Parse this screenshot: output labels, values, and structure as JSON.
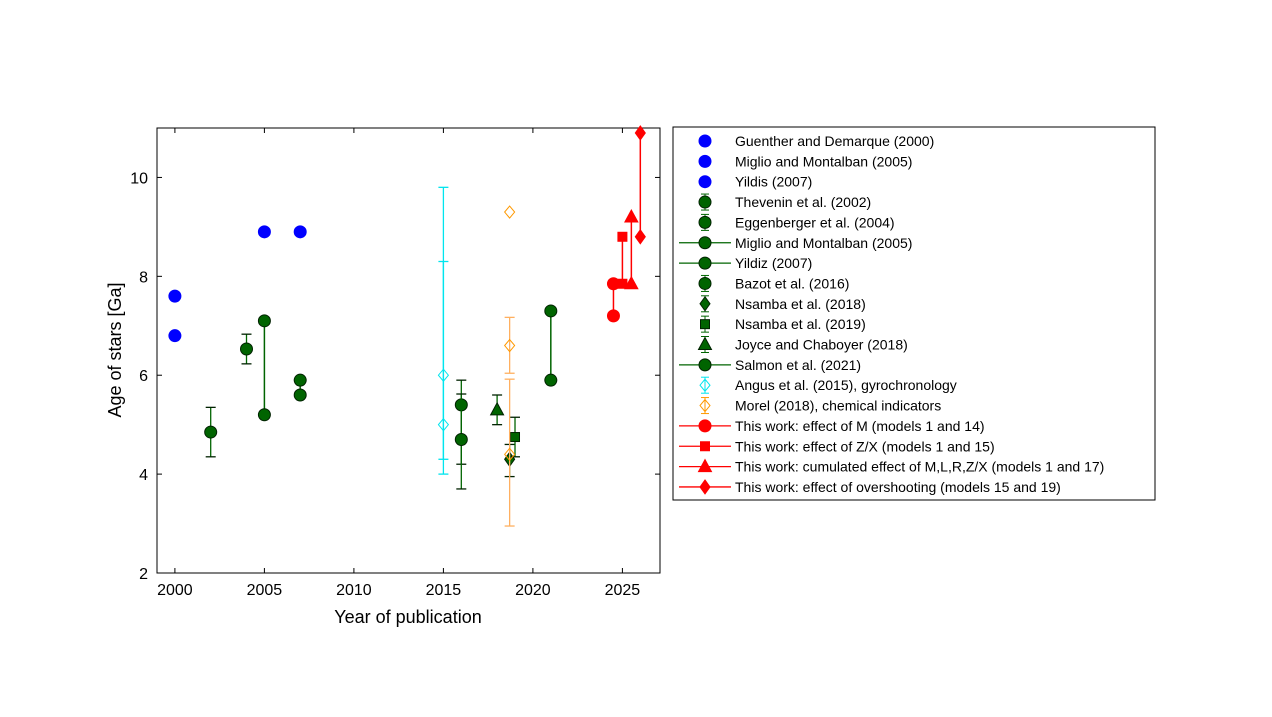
{
  "chart_data": {
    "type": "scatter",
    "xlabel": "Year of publication",
    "ylabel": "Age of stars [Ga]",
    "xlim": [
      1999,
      2027.1
    ],
    "ylim": [
      2,
      11
    ],
    "xticks": [
      2000,
      2005,
      2010,
      2015,
      2020,
      2025
    ],
    "yticks": [
      2,
      4,
      6,
      8,
      10
    ],
    "grid": false,
    "legend_position": "outside-right",
    "series": [
      {
        "name": "Guenther and Demarque (2000)",
        "color": "#0000ff",
        "marker": "circle",
        "points": [
          {
            "x": 2000,
            "y": 7.6
          },
          {
            "x": 2000,
            "y": 6.8
          }
        ]
      },
      {
        "name": "Miglio and Montalban (2005)",
        "color": "#0000ff",
        "marker": "circle",
        "points": [
          {
            "x": 2005,
            "y": 8.9
          }
        ]
      },
      {
        "name": "Yildis (2007)",
        "color": "#0000ff",
        "marker": "circle",
        "points": [
          {
            "x": 2007,
            "y": 8.9
          }
        ]
      },
      {
        "name": "Thevenin et al. (2002)",
        "color": "#006400",
        "marker": "circle",
        "errorbar": true,
        "points": [
          {
            "x": 2002,
            "y": 4.85,
            "lo": 4.35,
            "hi": 5.35
          }
        ]
      },
      {
        "name": "Eggenberger et al. (2004)",
        "color": "#006400",
        "marker": "circle",
        "errorbar": true,
        "points": [
          {
            "x": 2004,
            "y": 6.53,
            "lo": 6.23,
            "hi": 6.83
          }
        ]
      },
      {
        "name": "Miglio and Montalban (2005)",
        "color": "#006400",
        "marker": "circle",
        "line": true,
        "points": [
          {
            "x": 2005,
            "y": 7.1
          },
          {
            "x": 2005,
            "y": 5.2
          }
        ]
      },
      {
        "name": "Yildiz (2007)",
        "color": "#006400",
        "marker": "circle",
        "line": true,
        "points": [
          {
            "x": 2007,
            "y": 5.9
          },
          {
            "x": 2007,
            "y": 5.6
          }
        ]
      },
      {
        "name": "Bazot et al. (2016)",
        "color": "#006400",
        "marker": "circle",
        "errorbar": true,
        "points": [
          {
            "x": 2016,
            "y": 5.4,
            "lo": 4.2,
            "hi": 5.9
          },
          {
            "x": 2016,
            "y": 4.7,
            "lo": 3.7,
            "hi": 5.62
          }
        ]
      },
      {
        "name": "Nsamba et al. (2018)",
        "color": "#006400",
        "marker": "diamond",
        "errorbar": true,
        "points": [
          {
            "x": 2018.7,
            "y": 4.3,
            "lo": 3.95,
            "hi": 4.6
          }
        ]
      },
      {
        "name": "Nsamba et al. (2019)",
        "color": "#006400",
        "marker": "square",
        "errorbar": true,
        "points": [
          {
            "x": 2019,
            "y": 4.75,
            "lo": 4.35,
            "hi": 5.15
          }
        ]
      },
      {
        "name": "Joyce and Chaboyer (2018)",
        "color": "#006400",
        "marker": "triangle",
        "errorbar": true,
        "points": [
          {
            "x": 2018,
            "y": 5.3,
            "lo": 5.0,
            "hi": 5.6
          }
        ]
      },
      {
        "name": "Salmon et al. (2021)",
        "color": "#006400",
        "marker": "circle",
        "line": true,
        "points": [
          {
            "x": 2021,
            "y": 7.3
          },
          {
            "x": 2021,
            "y": 5.9
          }
        ]
      },
      {
        "name": "Angus et al. (2015), gyrochronology",
        "color": "#00e5ee",
        "marker": "diamond-open",
        "errorbar": true,
        "points": [
          {
            "x": 2015,
            "y": 6.0,
            "lo": 4.0,
            "hi": 9.8
          },
          {
            "x": 2015,
            "y": 5.0,
            "lo": 4.3,
            "hi": 8.3
          }
        ]
      },
      {
        "name": "Morel (2018), chemical indicators",
        "color": "#ff9900",
        "marker": "diamond-open",
        "errorbar": true,
        "points": [
          {
            "x": 2018.7,
            "y": 9.3
          },
          {
            "x": 2018.7,
            "y": 6.6,
            "lo": 6.04,
            "hi": 7.17
          },
          {
            "x": 2018.7,
            "y": 4.4,
            "lo": 2.95,
            "hi": 5.92
          }
        ]
      },
      {
        "name": "This work: effect of M (models 1 and 14)",
        "color": "#ff0000",
        "marker": "circle",
        "line": true,
        "points": [
          {
            "x": 2024.5,
            "y": 7.2
          },
          {
            "x": 2024.5,
            "y": 7.85
          }
        ]
      },
      {
        "name": "This work: effect of Z/X (models 1 and 15)",
        "color": "#ff0000",
        "marker": "square",
        "line": true,
        "points": [
          {
            "x": 2025,
            "y": 7.85
          },
          {
            "x": 2025,
            "y": 8.8
          }
        ]
      },
      {
        "name": "This work: cumulated effect of M,L,R,Z/X (models 1 and 17)",
        "color": "#ff0000",
        "marker": "triangle",
        "line": true,
        "points": [
          {
            "x": 2025.5,
            "y": 7.85
          },
          {
            "x": 2025.5,
            "y": 9.2
          }
        ]
      },
      {
        "name": "This work: effect of overshooting (models 15 and 19)",
        "color": "#ff0000",
        "marker": "diamond",
        "line": true,
        "points": [
          {
            "x": 2026,
            "y": 10.9
          },
          {
            "x": 2026,
            "y": 8.8
          }
        ]
      }
    ]
  }
}
